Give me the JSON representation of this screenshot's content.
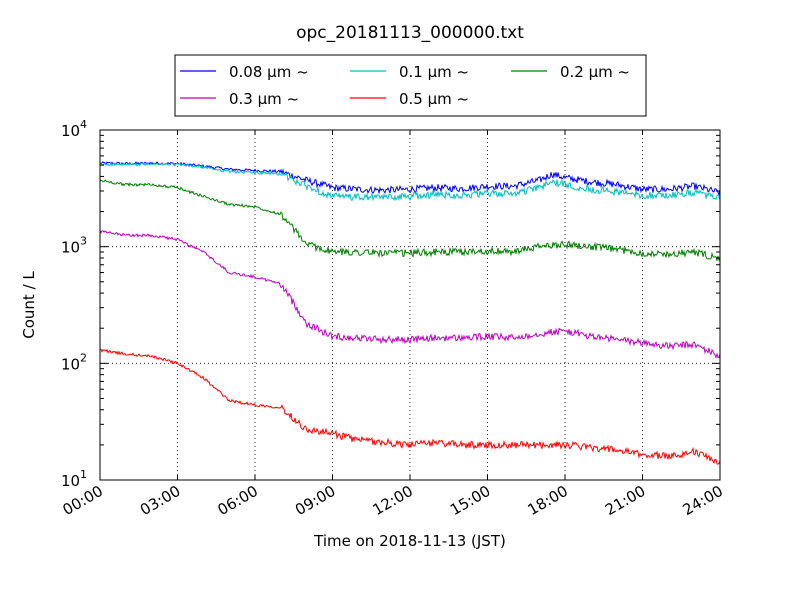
{
  "chart_data": {
    "type": "line",
    "title": "opc_20181113_000000.txt",
    "xlabel": "Time on 2018-11-13 (JST)",
    "ylabel": "Count / L",
    "xlim_hours": [
      0,
      24
    ],
    "ylim": [
      10,
      10000
    ],
    "yscale": "log",
    "grid": true,
    "legend_position": "top-center",
    "x_ticks": [
      "00:00",
      "03:00",
      "06:00",
      "09:00",
      "12:00",
      "15:00",
      "18:00",
      "21:00",
      "24:00"
    ],
    "y_ticks": [
      {
        "base": "10",
        "exp": "1"
      },
      {
        "base": "10",
        "exp": "2"
      },
      {
        "base": "10",
        "exp": "3"
      },
      {
        "base": "10",
        "exp": "4"
      }
    ],
    "series": [
      {
        "name": "0.08 μm ~",
        "color": "#0000ff",
        "x": [
          0,
          1,
          2,
          3,
          4,
          5,
          6,
          7,
          8,
          9,
          10,
          11,
          12,
          13,
          14,
          15,
          16,
          17,
          17.5,
          18,
          19,
          20,
          21,
          22,
          23,
          24
        ],
        "y": [
          5200,
          5150,
          5200,
          5150,
          4900,
          4600,
          4500,
          4400,
          3700,
          3200,
          3100,
          3050,
          3100,
          3200,
          3150,
          3300,
          3300,
          3700,
          4200,
          3900,
          3600,
          3400,
          3100,
          3100,
          3300,
          2900
        ]
      },
      {
        "name": "0.1 μm ~",
        "color": "#00bfbf",
        "x": [
          0,
          1,
          2,
          3,
          4,
          5,
          6,
          7,
          8,
          9,
          10,
          11,
          12,
          13,
          14,
          15,
          16,
          17,
          17.5,
          18,
          19,
          20,
          21,
          22,
          23,
          24
        ],
        "y": [
          5100,
          5050,
          5100,
          5050,
          4800,
          4400,
          4300,
          4200,
          3300,
          2700,
          2650,
          2650,
          2700,
          2800,
          2750,
          2850,
          2850,
          3200,
          3600,
          3400,
          3100,
          2950,
          2750,
          2750,
          2900,
          2600
        ]
      },
      {
        "name": "0.2 μm ~",
        "color": "#008000",
        "x": [
          0,
          1,
          2,
          3,
          4,
          5,
          6,
          7,
          8,
          9,
          10,
          11,
          12,
          13,
          14,
          15,
          16,
          17,
          18,
          19,
          20,
          21,
          22,
          23,
          24
        ],
        "y": [
          3700,
          3400,
          3400,
          3200,
          2700,
          2300,
          2200,
          1900,
          1050,
          900,
          900,
          880,
          880,
          900,
          900,
          920,
          900,
          1000,
          1050,
          1000,
          950,
          880,
          860,
          900,
          780
        ]
      },
      {
        "name": "0.3 μm ~",
        "color": "#bf00bf",
        "x": [
          0,
          1,
          2,
          3,
          4,
          5,
          6,
          7,
          8,
          9,
          10,
          11,
          12,
          13,
          14,
          15,
          16,
          17,
          18,
          19,
          20,
          21,
          22,
          23,
          24
        ],
        "y": [
          1350,
          1250,
          1250,
          1150,
          900,
          600,
          550,
          480,
          220,
          170,
          165,
          160,
          160,
          165,
          165,
          170,
          165,
          180,
          190,
          170,
          160,
          150,
          140,
          145,
          115
        ]
      },
      {
        "name": "0.5 μm ~",
        "color": "#ff0000",
        "x": [
          0,
          1,
          2,
          3,
          4,
          5,
          6,
          7,
          8,
          9,
          10,
          11,
          12,
          13,
          14,
          15,
          16,
          17,
          18,
          19,
          20,
          21,
          22,
          23,
          24
        ],
        "y": [
          130,
          120,
          115,
          100,
          75,
          48,
          44,
          42,
          27,
          25,
          22,
          21,
          20,
          21,
          20,
          20,
          20,
          20,
          20,
          19,
          18,
          16.5,
          16,
          17.5,
          14
        ]
      }
    ]
  }
}
